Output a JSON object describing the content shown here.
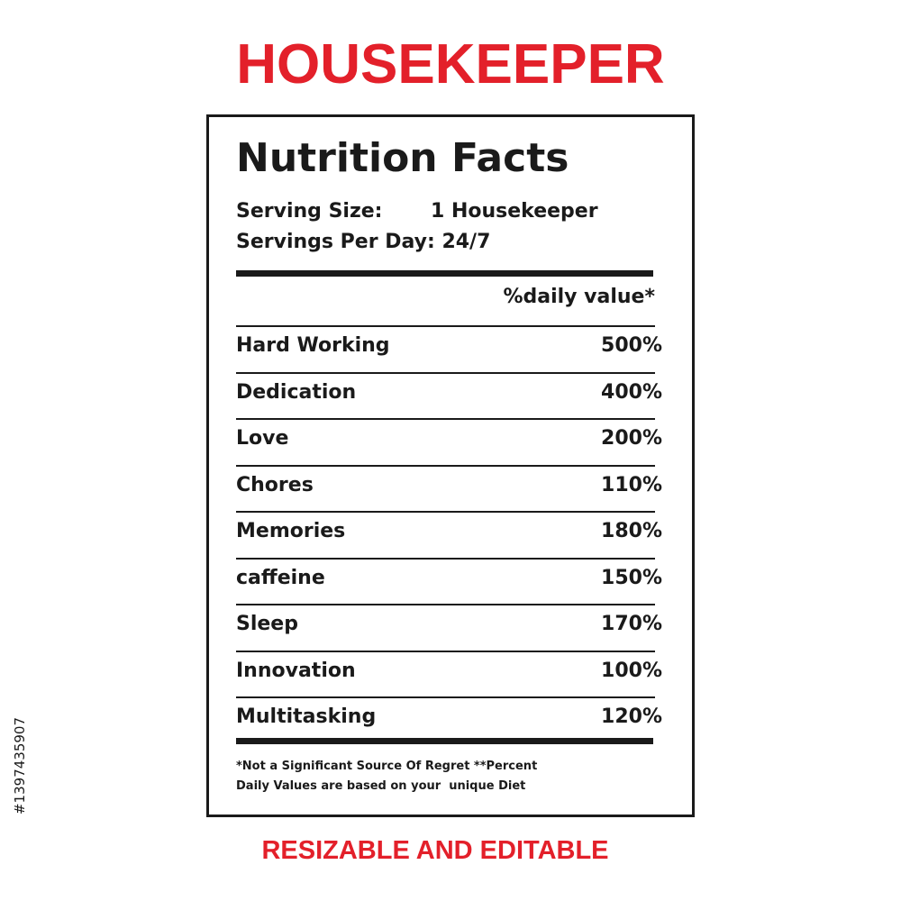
{
  "title": "HOUSEKEEPER",
  "label": {
    "heading": "Nutrition Facts",
    "serving_size_label": "Serving Size:",
    "serving_size_value": "1 Housekeeper",
    "servings_per_day": "Servings Per Day: 24/7",
    "column_header": "%daily value*",
    "rows": [
      [
        "Hard Working",
        "500%"
      ],
      [
        "Dedication",
        "400%"
      ],
      [
        "Love",
        "200%"
      ],
      [
        "Chores",
        "110%"
      ],
      [
        "Memories",
        "180%"
      ],
      [
        "caffeine",
        "150%"
      ],
      [
        "Sleep",
        "170%"
      ],
      [
        "Innovation",
        "100%"
      ],
      [
        "Multitasking",
        "120%"
      ]
    ],
    "footnote": [
      "*Not a Significant Source Of Regret **Percent",
      "Daily Values are based on your  unique Diet"
    ]
  },
  "footer": "RESIZABLE AND EDITABLE",
  "stock_id": "#1397435907"
}
